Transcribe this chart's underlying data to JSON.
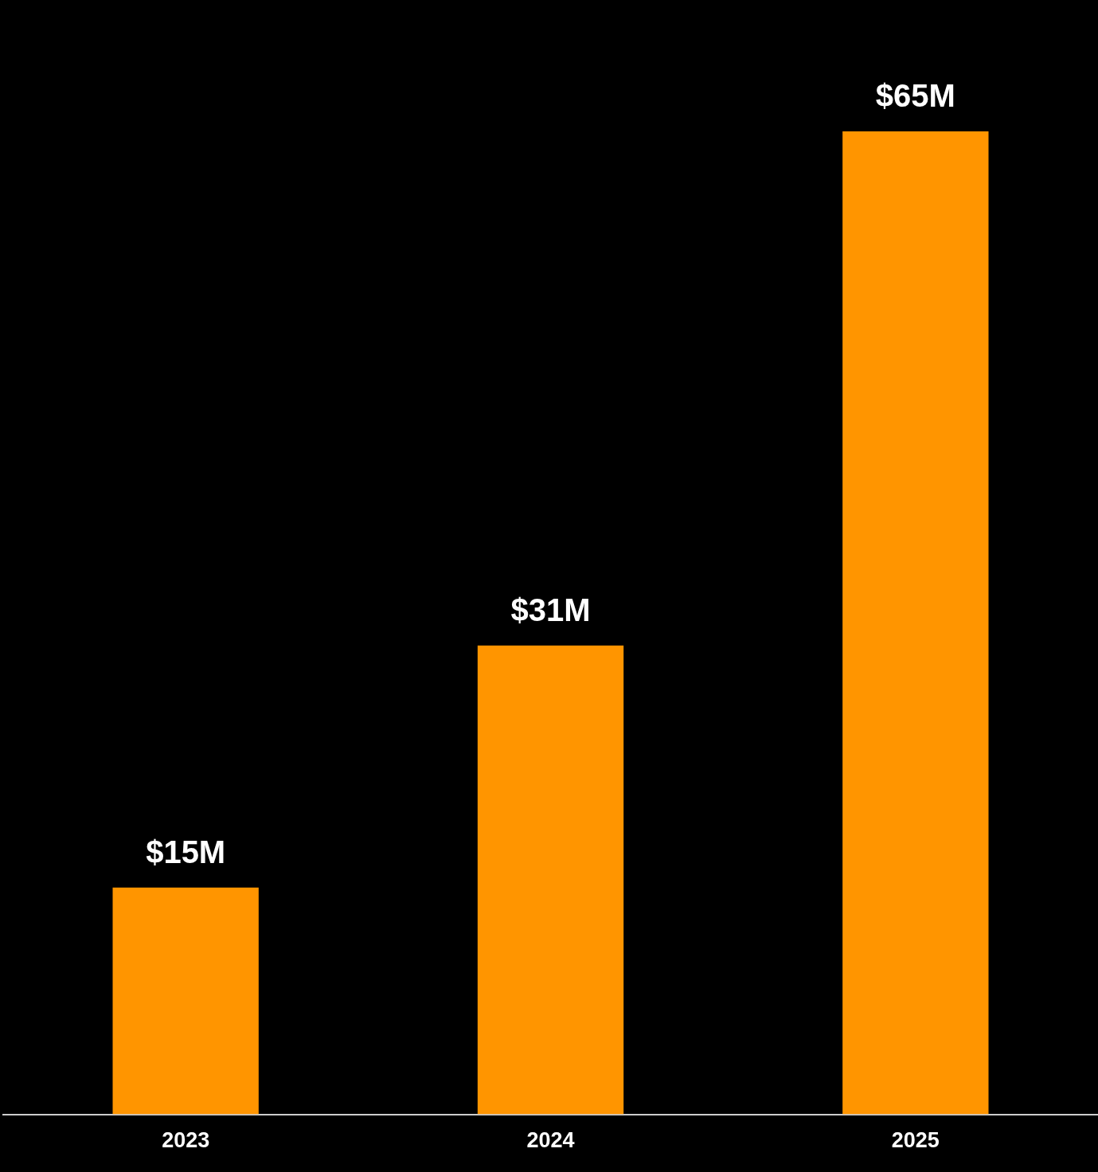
{
  "chart_data": {
    "type": "bar",
    "categories": [
      "2023",
      "2024",
      "2025"
    ],
    "values": [
      15,
      31,
      65
    ],
    "color": "#ff9500",
    "value_labels": [
      "$15M",
      "$31M",
      "$65M"
    ],
    "grid": false,
    "legend": false
  }
}
